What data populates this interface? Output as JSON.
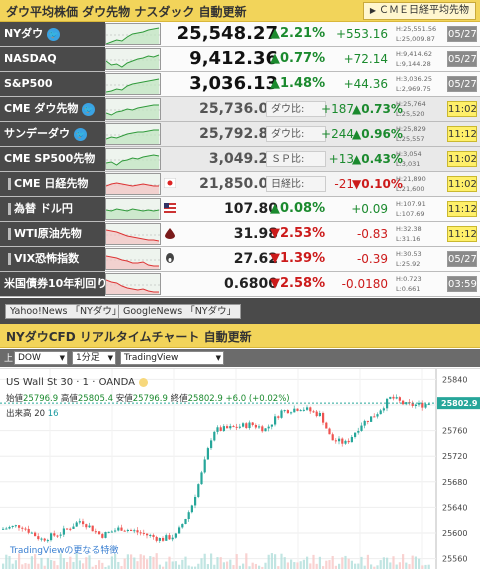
{
  "header": {
    "title": "ダウ平均株価 ダウ先物 ナスダック 自動更新",
    "button": "ＣＭＥ日経平均先物"
  },
  "quotes": [
    {
      "name": "NYダウ",
      "twitter": true,
      "price": "25,548.27",
      "pct": "▲2.21%",
      "chg": "+553.16",
      "hl_h": "H:25,551.56",
      "hl_l": "L:25,009.87",
      "time": "05/27",
      "dir": "up",
      "time_style": "gray"
    },
    {
      "name": "NASDAQ",
      "twitter": false,
      "price": "9,412.36",
      "pct": "▲0.77%",
      "chg": "+72.14",
      "hl_h": "H:9,414.62",
      "hl_l": "L:9,144.28",
      "time": "05/27",
      "dir": "up",
      "time_style": "gray"
    },
    {
      "name": "S&P500",
      "twitter": false,
      "price": "3,036.13",
      "pct": "▲1.48%",
      "chg": "+44.36",
      "hl_h": "H:3,036.25",
      "hl_l": "L:2,969.75",
      "time": "05/27",
      "dir": "up",
      "time_style": "gray"
    },
    {
      "name": "CME ダウ先物",
      "twitter": true,
      "price": "25,736.00",
      "label": "ダウ比:",
      "chg": "+187",
      "pct": "▲0.73%",
      "hl_h": "H:25,764",
      "hl_l": "L:25,520",
      "time": "11:02",
      "dir": "up",
      "time_style": "yellow"
    },
    {
      "name": "サンデーダウ",
      "twitter": true,
      "price": "25,792.80",
      "label": "ダウ比:",
      "chg": "+244",
      "pct": "▲0.96%",
      "hl_h": "H:25,829",
      "hl_l": "L:25,557",
      "time": "11:12",
      "dir": "up",
      "time_style": "yellow"
    },
    {
      "name": "CME SP500先物",
      "twitter": false,
      "price": "3,049.25",
      "label": "ＳＰ比:",
      "chg": "+13",
      "pct": "▲0.43%",
      "hl_h": "H:3,054",
      "hl_l": "L:3,031",
      "time": "11:02",
      "dir": "up",
      "time_style": "yellow"
    },
    {
      "name": "CME 日経先物",
      "twitter": false,
      "price": "21,850.00",
      "label": "日経比:",
      "chg": "-21",
      "pct": "▼0.10%",
      "hl_h": "H:21,890",
      "hl_l": "L:21,600",
      "time": "11:02",
      "dir": "down",
      "time_style": "yellow"
    },
    {
      "name": "為替 ドル円",
      "twitter": false,
      "price": "107.80",
      "pct": "▲0.08%",
      "chg": "+0.09",
      "hl_h": "H:107.91",
      "hl_l": "L:107.69",
      "time": "11:12",
      "dir": "up",
      "time_style": "yellow"
    },
    {
      "name": "WTI原油先物",
      "twitter": false,
      "price": "31.98",
      "pct": "▼2.53%",
      "chg": "-0.83",
      "hl_h": "H:32.38",
      "hl_l": "L:31.16",
      "time": "11:12",
      "dir": "down",
      "time_style": "yellow"
    },
    {
      "name": "VIX恐怖指数",
      "twitter": false,
      "price": "27.62",
      "pct": "▼1.39%",
      "chg": "-0.39",
      "hl_h": "H:30.53",
      "hl_l": "L:25.92",
      "time": "05/27",
      "dir": "down",
      "time_style": "gray"
    },
    {
      "name": "米国債券10年利回り",
      "twitter": false,
      "price": "0.6800",
      "pct": "▼2.58%",
      "chg": "-0.0180",
      "hl_h": "H:0.723",
      "hl_l": "L:0.661",
      "time": "03:59",
      "dir": "down",
      "time_style": "gray"
    }
  ],
  "news": [
    "Yahoo!News 「NYダウ」",
    "GoogleNews 「NYダウ」"
  ],
  "chart_section": {
    "title": "NYダウCFD リアルタイムチャート 自動更新",
    "select_prefix": "上",
    "symbol_select": "DOW",
    "interval_select": "1分足",
    "source_select": "TradingView"
  },
  "chart_data": {
    "type": "candlestick",
    "symbol": "US Wall St 30 · 1 · OANDA",
    "ohlc": {
      "open_label": "始値",
      "open": "25796.9",
      "high_label": "高値",
      "high": "25805.4",
      "low_label": "安値",
      "low": "25796.9",
      "close_label": "終値",
      "close": "25802.9",
      "change": "+6.0 (+0.02%)"
    },
    "volume_label": "出来高",
    "volume_values": [
      "20",
      "16"
    ],
    "last_price_tag": "25802.9",
    "yaxis_ticks": [
      25840,
      25800,
      25760,
      25720,
      25680,
      25640,
      25600,
      25560
    ],
    "ylim": [
      25550,
      25850
    ],
    "tv_link": "TradingViewの更なる特徴"
  },
  "colors": {
    "header_bg": "#f2d45a",
    "name_bg": "#4a4a4a",
    "up": "#1b8a2e",
    "down": "#cc1a1a",
    "twitter": "#3aa3e3"
  }
}
